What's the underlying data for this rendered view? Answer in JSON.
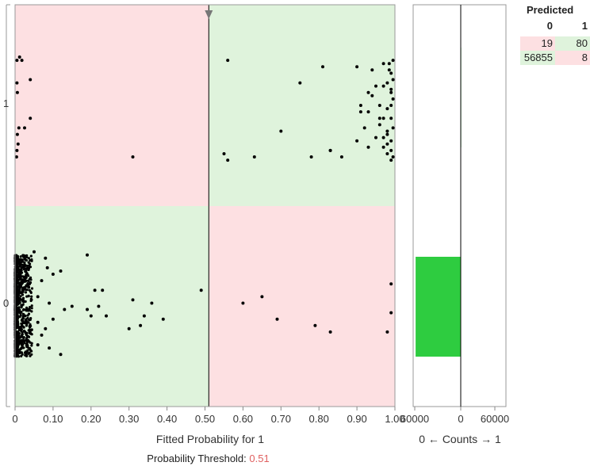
{
  "colors": {
    "pink_region": "#fde0e2",
    "green_region": "#dff3dc",
    "bar_green": "#2ecc40",
    "dot": "#000000",
    "threshold_value_color": "#e06060",
    "axis": "#888888"
  },
  "chart_data": [
    {
      "type": "scatter",
      "xlabel": "Fitted Probability for 1",
      "ylabel": "",
      "xlim": [
        0,
        1
      ],
      "x_ticks": [
        "0",
        "0.10",
        "0.20",
        "0.30",
        "0.40",
        "0.50",
        "0.60",
        "0.70",
        "0.80",
        "0.90",
        "1.00"
      ],
      "y_categories": [
        "1",
        "0"
      ],
      "threshold": 0.51,
      "threshold_label": "Probability Threshold:",
      "threshold_value_text": "0.51",
      "regions": [
        {
          "row": "1",
          "x_range": [
            0,
            0.51
          ],
          "color": "pink"
        },
        {
          "row": "1",
          "x_range": [
            0.51,
            1
          ],
          "color": "green"
        },
        {
          "row": "0",
          "x_range": [
            0,
            0.51
          ],
          "color": "green"
        },
        {
          "row": "0",
          "x_range": [
            0.51,
            1
          ],
          "color": "pink"
        }
      ],
      "points_class_1": [
        [
          0.005,
          0.94
        ],
        [
          0.012,
          0.95
        ],
        [
          0.018,
          0.94
        ],
        [
          0.005,
          0.87
        ],
        [
          0.006,
          0.84
        ],
        [
          0.04,
          0.88
        ],
        [
          0.01,
          0.73
        ],
        [
          0.006,
          0.71
        ],
        [
          0.008,
          0.68
        ],
        [
          0.005,
          0.66
        ],
        [
          0.004,
          0.64
        ],
        [
          0.04,
          0.76
        ],
        [
          0.025,
          0.73
        ],
        [
          0.31,
          0.64
        ],
        [
          0.56,
          0.94
        ],
        [
          0.81,
          0.92
        ],
        [
          0.9,
          0.92
        ],
        [
          0.75,
          0.87
        ],
        [
          0.55,
          0.65
        ],
        [
          0.56,
          0.63
        ],
        [
          0.63,
          0.64
        ],
        [
          0.7,
          0.72
        ],
        [
          0.78,
          0.64
        ],
        [
          0.83,
          0.66
        ],
        [
          0.83,
          0.66
        ],
        [
          0.86,
          0.64
        ],
        [
          0.9,
          0.69
        ],
        [
          0.93,
          0.67
        ],
        [
          0.91,
          0.8
        ],
        [
          0.93,
          0.84
        ],
        [
          0.94,
          0.83
        ],
        [
          0.96,
          0.8
        ],
        [
          0.95,
          0.86
        ],
        [
          0.97,
          0.86
        ],
        [
          0.97,
          0.76
        ],
        [
          0.98,
          0.71
        ],
        [
          0.99,
          0.69
        ],
        [
          0.96,
          0.74
        ],
        [
          0.95,
          0.7
        ],
        [
          0.97,
          0.67
        ],
        [
          0.98,
          0.65
        ],
        [
          0.99,
          0.63
        ],
        [
          0.985,
          0.93
        ],
        [
          0.99,
          0.9
        ],
        [
          0.995,
          0.88
        ],
        [
          0.99,
          0.85
        ],
        [
          0.995,
          0.82
        ],
        [
          0.98,
          0.79
        ],
        [
          0.99,
          0.76
        ],
        [
          0.995,
          0.73
        ],
        [
          0.985,
          0.91
        ],
        [
          0.995,
          0.94
        ],
        [
          0.98,
          0.87
        ],
        [
          0.99,
          0.8
        ],
        [
          0.98,
          0.72
        ],
        [
          0.97,
          0.93
        ],
        [
          0.94,
          0.91
        ],
        [
          0.96,
          0.76
        ],
        [
          0.91,
          0.78
        ],
        [
          0.92,
          0.73
        ],
        [
          0.99,
          0.66
        ],
        [
          0.995,
          0.64
        ],
        [
          0.98,
          0.68
        ],
        [
          0.97,
          0.7
        ],
        [
          0.93,
          0.78
        ],
        [
          0.99,
          0.84
        ]
      ],
      "points_class_0_sparse": [
        [
          0.05,
          0.27
        ],
        [
          0.08,
          0.25
        ],
        [
          0.085,
          0.22
        ],
        [
          0.12,
          0.21
        ],
        [
          0.15,
          0.1
        ],
        [
          0.19,
          0.26
        ],
        [
          0.21,
          0.15
        ],
        [
          0.23,
          0.15
        ],
        [
          0.19,
          0.09
        ],
        [
          0.2,
          0.07
        ],
        [
          0.24,
          0.07
        ],
        [
          0.22,
          0.1
        ],
        [
          0.31,
          0.12
        ],
        [
          0.34,
          0.07
        ],
        [
          0.36,
          0.11
        ],
        [
          0.39,
          0.06
        ],
        [
          0.3,
          0.03
        ],
        [
          0.33,
          0.04
        ],
        [
          0.49,
          0.15
        ],
        [
          0.06,
          0.13
        ],
        [
          0.07,
          0.18
        ],
        [
          0.09,
          0.11
        ],
        [
          0.1,
          0.2
        ],
        [
          0.13,
          0.09
        ],
        [
          0.06,
          0.05
        ],
        [
          0.08,
          0.03
        ],
        [
          0.12,
          -0.05
        ],
        [
          0.09,
          -0.03
        ],
        [
          0.06,
          -0.02
        ],
        [
          0.07,
          0.01
        ],
        [
          0.1,
          0.06
        ],
        [
          0.6,
          0.11
        ],
        [
          0.65,
          0.13
        ],
        [
          0.69,
          0.06
        ],
        [
          0.79,
          0.04
        ],
        [
          0.83,
          0.02
        ],
        [
          0.98,
          0.02
        ],
        [
          0.99,
          0.17
        ],
        [
          0.99,
          0.08
        ]
      ]
    },
    {
      "type": "bar",
      "xlabel": "0 ← Counts → 1",
      "x_ticks": [
        "60000",
        "0",
        "60000"
      ],
      "categories": [
        "0",
        "1"
      ],
      "series": [
        {
          "values": [
            56855,
            80
          ]
        }
      ]
    }
  ],
  "confusion": {
    "title": "Predicted",
    "col_headers": [
      "0",
      "1"
    ],
    "rows": [
      {
        "cells": [
          "19",
          "80"
        ],
        "colors": [
          "pink",
          "green"
        ]
      },
      {
        "cells": [
          "56855",
          "8"
        ],
        "colors": [
          "green",
          "pink"
        ]
      }
    ]
  }
}
